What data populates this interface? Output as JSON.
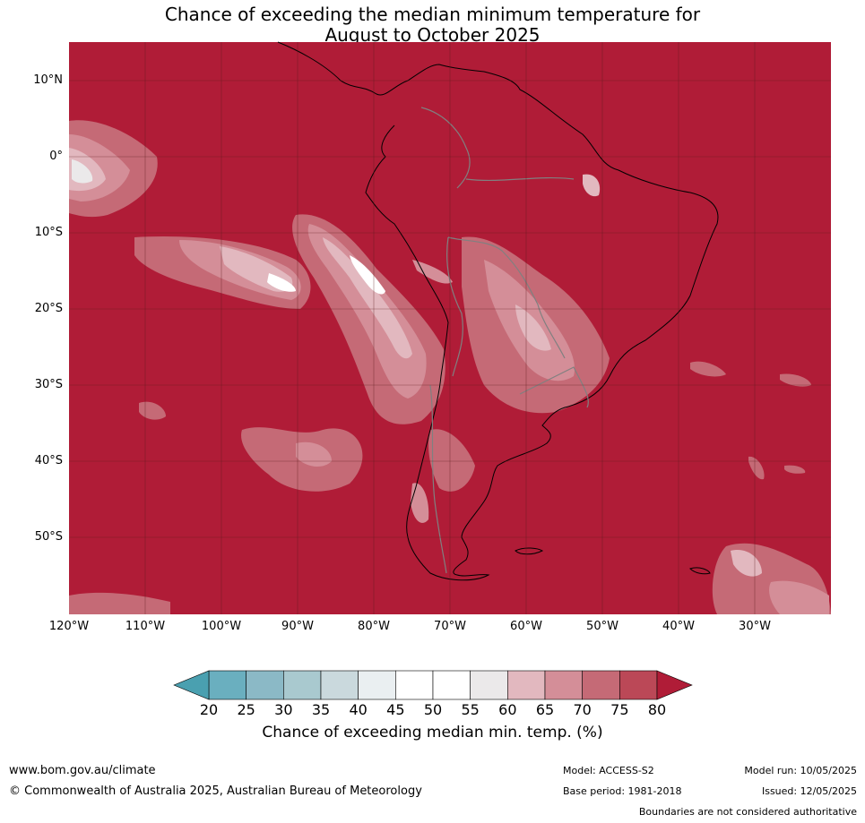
{
  "title": {
    "line1": "Chance of exceeding the median minimum temperature for",
    "line2": "August to October 2025"
  },
  "map": {
    "background_color": "#b01c37",
    "lat_labels": [
      "10°N",
      "0°",
      "10°S",
      "20°S",
      "30°S",
      "40°S",
      "50°S"
    ],
    "lon_labels": [
      "120°W",
      "110°W",
      "100°W",
      "90°W",
      "80°W",
      "70°W",
      "60°W",
      "50°W",
      "40°W",
      "30°W"
    ]
  },
  "colorbar": {
    "ticks": [
      "20",
      "25",
      "30",
      "35",
      "40",
      "45",
      "50",
      "55",
      "60",
      "65",
      "70",
      "75",
      "80"
    ],
    "colors": [
      "#6aafbf",
      "#8bb9c6",
      "#a9c9cf",
      "#cad9dd",
      "#eaeff1",
      "#ffffff",
      "#ffffff",
      "#ebe9ea",
      "#e2b8bf",
      "#d48e98",
      "#c56a76",
      "#bb4857"
    ],
    "under_color": "#4aa0b0",
    "over_color": "#b01c37",
    "label": "Chance of exceeding median min. temp. (%)"
  },
  "footer": {
    "website": "www.bom.gov.au/climate",
    "copyright": "© Commonwealth of Australia 2025, Australian Bureau of Meteorology",
    "model": "Model: ACCESS-S2",
    "base_period": "Base period: 1981-2018",
    "model_run": "Model run: 10/05/2025",
    "issued": "Issued: 12/05/2025",
    "disclaimer": "Boundaries are not considered authoritative"
  }
}
